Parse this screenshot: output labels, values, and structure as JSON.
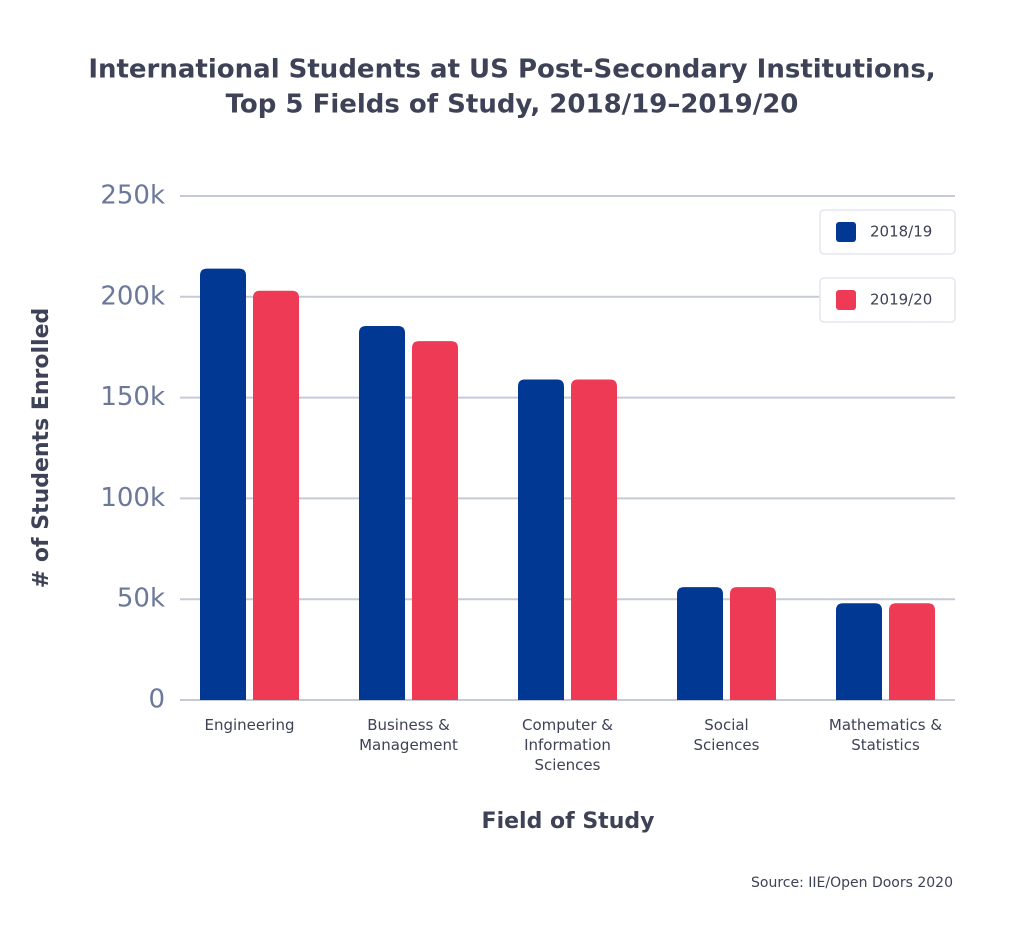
{
  "chart_data": {
    "type": "bar",
    "title": "International Students at US Post-Secondary Institutions,",
    "subtitle": "Top 5 Fields of Study, 2018/19–2019/20",
    "x_label": "Field of Study",
    "y_label": "# of Students Enrolled",
    "source": "Source: IIE/Open Doors 2020",
    "categories": [
      "Engineering",
      "Business &\nManagement",
      "Computer &\nInformation\nSciences",
      "Social\nSciences",
      "Mathematics &\nStatistics"
    ],
    "series": [
      {
        "name": "2018/19",
        "color": "#003893",
        "values": [
          214000,
          185500,
          159000,
          56000,
          48000
        ]
      },
      {
        "name": "2019/20",
        "color": "#ef3a56",
        "values": [
          203000,
          178000,
          159000,
          56000,
          48000
        ]
      }
    ],
    "ylim": [
      0,
      250000
    ],
    "yticks": [
      0,
      {
        "value": 50000,
        "label": "50k"
      },
      {
        "value": 100000,
        "label": "100k"
      },
      {
        "value": 150000,
        "label": "150k"
      },
      {
        "value": 200000,
        "label": "200k"
      },
      {
        "value": 250000,
        "label": "250k"
      }
    ],
    "grid": true,
    "legend": "top-right"
  }
}
